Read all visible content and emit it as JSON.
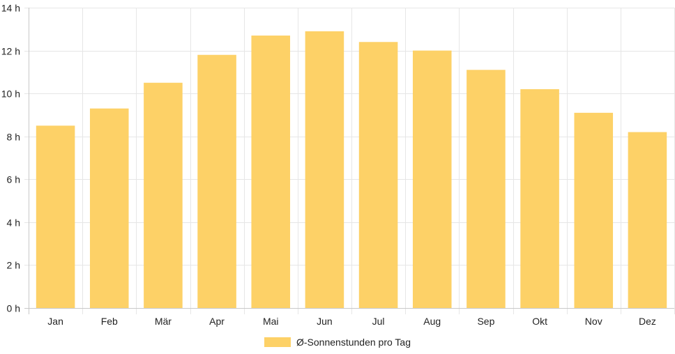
{
  "chart_data": {
    "type": "bar",
    "categories": [
      "Jan",
      "Feb",
      "Mär",
      "Apr",
      "Mai",
      "Jun",
      "Jul",
      "Aug",
      "Sep",
      "Okt",
      "Nov",
      "Dez"
    ],
    "series": [
      {
        "name": "Ø-Sonnenstunden pro Tag",
        "values": [
          8.5,
          9.3,
          10.5,
          11.8,
          12.7,
          12.9,
          12.4,
          12.0,
          11.1,
          10.2,
          9.1,
          8.2
        ]
      }
    ],
    "ylim": [
      0,
      14
    ],
    "yticks": [
      0,
      2,
      4,
      6,
      8,
      10,
      12,
      14
    ],
    "ytick_labels": [
      "0 h",
      "2 h",
      "4 h",
      "6 h",
      "8 h",
      "10 h",
      "12 h",
      "14 h"
    ],
    "grid": true,
    "legend_position": "bottom",
    "colors": {
      "bar": "#fdd167",
      "grid": "#e6e6e6",
      "axis": "#c8c8c8",
      "text": "#222222"
    }
  }
}
